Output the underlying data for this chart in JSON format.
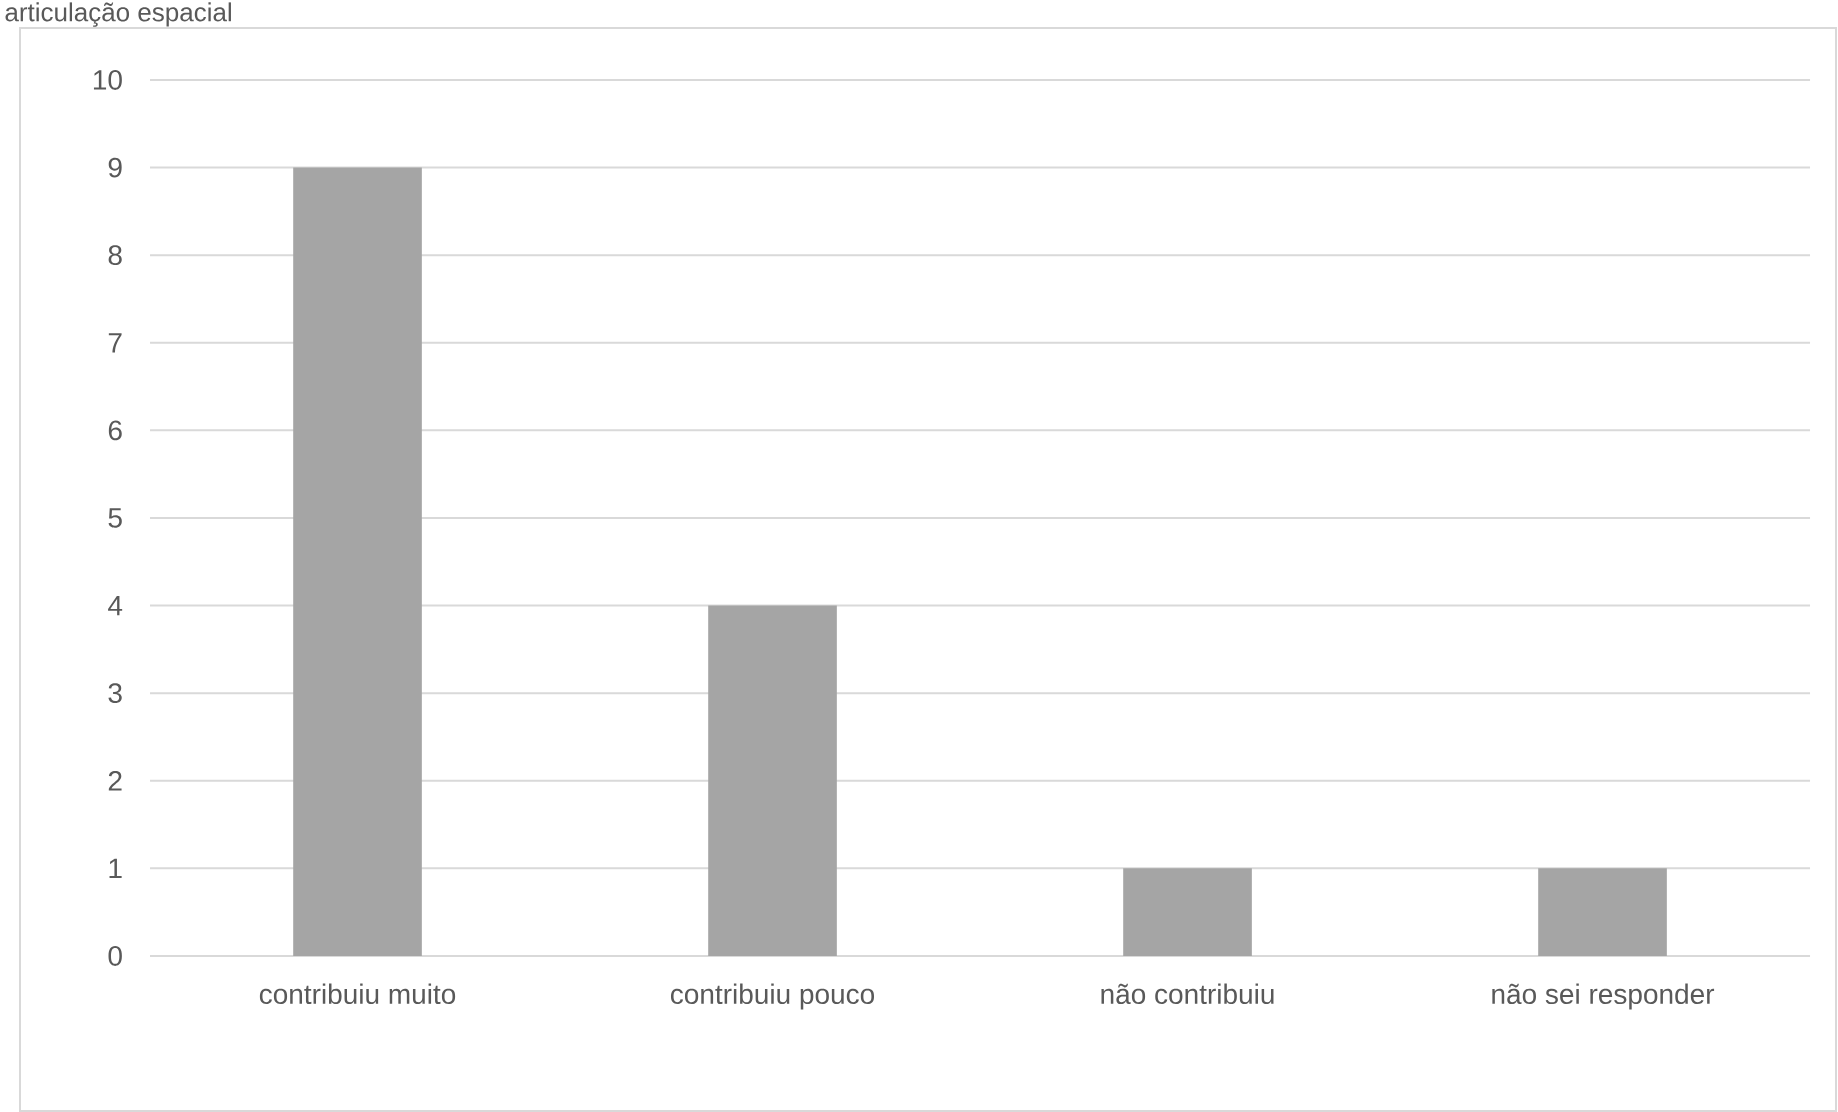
{
  "chart_data": {
    "type": "bar",
    "title": "articulação espacial",
    "categories": [
      "contribuiu muito",
      "contribuiu pouco",
      "não contribuiu",
      "não sei responder"
    ],
    "values": [
      9,
      4,
      1,
      1
    ],
    "color": "#a5a5a5",
    "ylim": [
      0,
      10
    ],
    "yticks": [
      0,
      1,
      2,
      3,
      4,
      5,
      6,
      7,
      8,
      9,
      10
    ],
    "grid": "y"
  }
}
